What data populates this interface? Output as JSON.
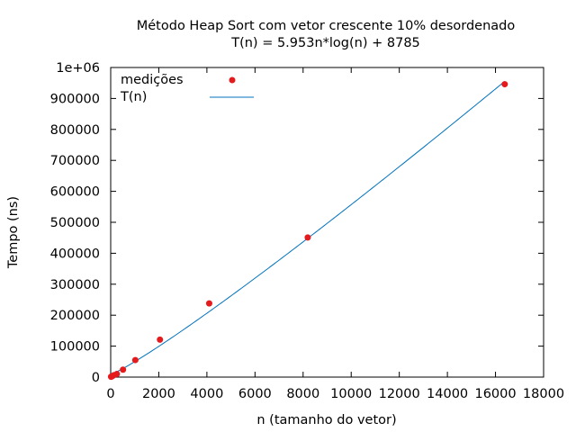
{
  "chart_data": {
    "type": "scatter",
    "title_line1": "Método Heap Sort com vetor crescente 10% desordenado",
    "title_line2": "T(n) = 5.953n*log(n) + 8785",
    "xlabel": "n (tamanho do vetor)",
    "ylabel": "Tempo (ns)",
    "xlim": [
      0,
      18000
    ],
    "ylim": [
      0,
      1000000
    ],
    "x_ticks": [
      0,
      2000,
      4000,
      6000,
      8000,
      10000,
      12000,
      14000,
      16000,
      18000
    ],
    "x_tick_labels": [
      "0",
      "2000",
      "4000",
      "6000",
      "8000",
      "10000",
      "12000",
      "14000",
      "16000",
      "18000"
    ],
    "y_ticks": [
      0,
      100000,
      200000,
      300000,
      400000,
      500000,
      600000,
      700000,
      800000,
      900000,
      1000000
    ],
    "y_tick_labels": [
      "0",
      "100000",
      "200000",
      "300000",
      "400000",
      "500000",
      "600000",
      "700000",
      "800000",
      "900000",
      "1e+06"
    ],
    "grid": false,
    "legend_position": "top-left",
    "series": [
      {
        "name": "medições",
        "kind": "points",
        "color": "#e41a1c",
        "x": [
          16,
          32,
          64,
          128,
          256,
          512,
          1024,
          2048,
          4096,
          8192,
          16384
        ],
        "y": [
          1000,
          2000,
          3000,
          6000,
          10000,
          24000,
          55000,
          121000,
          238000,
          451000,
          946000
        ]
      },
      {
        "name": "T(n)",
        "kind": "line",
        "color": "#0072bd",
        "formula": "5.953*n*log(n) + 8785"
      }
    ]
  }
}
